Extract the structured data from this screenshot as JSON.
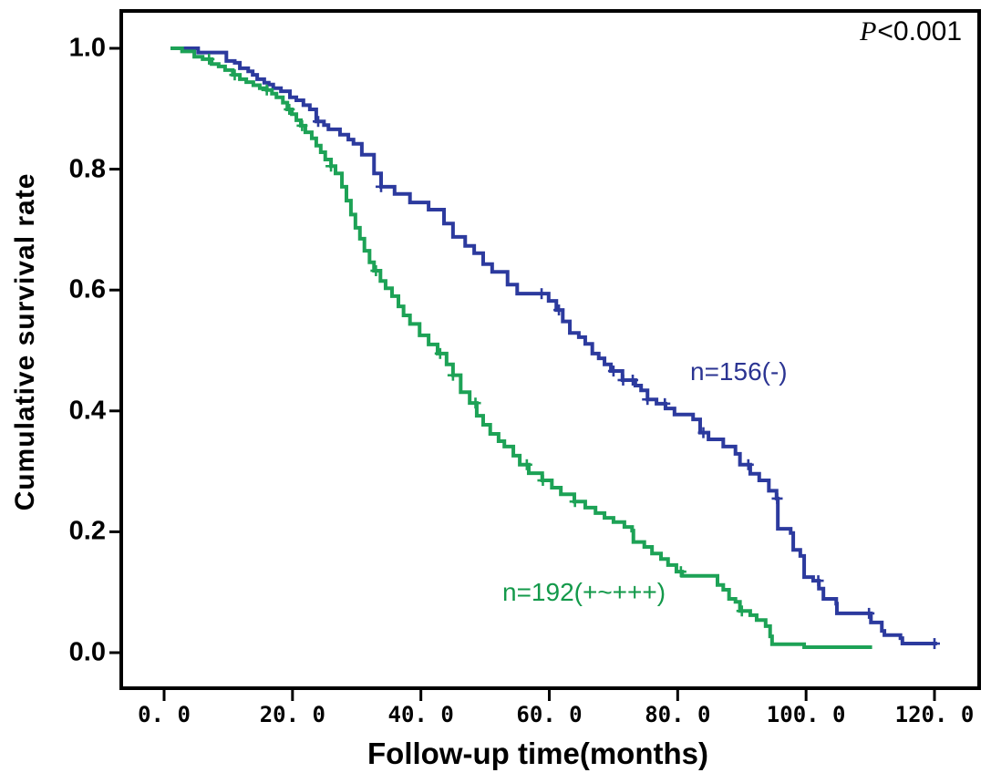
{
  "figure": {
    "p_value_italic": "P",
    "p_value_rest": "<0.001"
  },
  "chart_data": {
    "type": "line",
    "subtype": "kaplan-meier-step",
    "title": "",
    "xlabel": "Follow-up time(months)",
    "ylabel": "Cumulative survival rate",
    "xlim": [
      0,
      120
    ],
    "ylim": [
      0.0,
      1.0
    ],
    "grid": false,
    "legend_position": "inline-annotations",
    "annotation": "P<0.001",
    "x_ticks": [
      0,
      20,
      40,
      60,
      80,
      100,
      120
    ],
    "x_tick_labels": [
      "0. 0",
      "20. 0",
      "40. 0",
      "60. 0",
      "80. 0",
      "100. 0",
      "120. 0"
    ],
    "y_ticks": [
      0.0,
      0.2,
      0.4,
      0.6,
      0.8,
      1.0
    ],
    "y_tick_labels": [
      "0.0",
      "0.2",
      "0.4",
      "0.6",
      "0.8",
      "1.0"
    ],
    "series": [
      {
        "name": "n=156(-)",
        "group": "negative",
        "n": 156,
        "color": "#2c3a9e",
        "label_color": "#2b3492",
        "points": [
          [
            1,
            1.0
          ],
          [
            5.3,
            0.993
          ],
          [
            9.7,
            0.979
          ],
          [
            11,
            0.976
          ],
          [
            11.8,
            0.967
          ],
          [
            13.1,
            0.962
          ],
          [
            13.8,
            0.956
          ],
          [
            14.5,
            0.949
          ],
          [
            15.6,
            0.943
          ],
          [
            16.3,
            0.94
          ],
          [
            17,
            0.934
          ],
          [
            18.2,
            0.929
          ],
          [
            19.6,
            0.919
          ],
          [
            20.6,
            0.914
          ],
          [
            21.7,
            0.906
          ],
          [
            22.7,
            0.899
          ],
          [
            23.7,
            0.879
          ],
          [
            24.9,
            0.873
          ],
          [
            25.6,
            0.866
          ],
          [
            27.4,
            0.857
          ],
          [
            28.7,
            0.849
          ],
          [
            29.5,
            0.842
          ],
          [
            30.8,
            0.824
          ],
          [
            32.7,
            0.793
          ],
          [
            33.8,
            0.771
          ],
          [
            35.9,
            0.759
          ],
          [
            38.3,
            0.745
          ],
          [
            41.2,
            0.733
          ],
          [
            43.6,
            0.71
          ],
          [
            45,
            0.688
          ],
          [
            46.9,
            0.673
          ],
          [
            48.3,
            0.661
          ],
          [
            49.7,
            0.643
          ],
          [
            51.1,
            0.63
          ],
          [
            53.5,
            0.609
          ],
          [
            55,
            0.594
          ],
          [
            59.9,
            0.582
          ],
          [
            61.1,
            0.567
          ],
          [
            62.1,
            0.548
          ],
          [
            63.2,
            0.529
          ],
          [
            64.6,
            0.522
          ],
          [
            65.6,
            0.511
          ],
          [
            66.7,
            0.495
          ],
          [
            67.7,
            0.487
          ],
          [
            68.6,
            0.477
          ],
          [
            69.6,
            0.466
          ],
          [
            71.4,
            0.451
          ],
          [
            73.4,
            0.442
          ],
          [
            74.3,
            0.434
          ],
          [
            75.3,
            0.419
          ],
          [
            76.7,
            0.412
          ],
          [
            78.1,
            0.404
          ],
          [
            79.5,
            0.394
          ],
          [
            82.4,
            0.386
          ],
          [
            83.5,
            0.364
          ],
          [
            84.8,
            0.353
          ],
          [
            87.1,
            0.341
          ],
          [
            89,
            0.329
          ],
          [
            89.7,
            0.311
          ],
          [
            91.3,
            0.296
          ],
          [
            92.7,
            0.285
          ],
          [
            94.2,
            0.268
          ],
          [
            95.4,
            0.255
          ],
          [
            95.6,
            0.205
          ],
          [
            97.6,
            0.198
          ],
          [
            98,
            0.17
          ],
          [
            99.1,
            0.16
          ],
          [
            99.7,
            0.125
          ],
          [
            101.1,
            0.119
          ],
          [
            102,
            0.106
          ],
          [
            102.7,
            0.089
          ],
          [
            104.7,
            0.081
          ],
          [
            104.8,
            0.065
          ],
          [
            110.1,
            0.05
          ],
          [
            111.8,
            0.036
          ],
          [
            112.2,
            0.029
          ],
          [
            114.7,
            0.024
          ],
          [
            115,
            0.015
          ],
          [
            120.4,
            0.015
          ]
        ],
        "censor_months": [
          24,
          33.8,
          58.8,
          61.5,
          70,
          71.5,
          73,
          75.3,
          78,
          84,
          91,
          95.5,
          101.9,
          109.8,
          120
        ]
      },
      {
        "name": "n=192(+~+++)",
        "group": "positive",
        "n": 192,
        "color": "#1da256",
        "label_color": "#13994a",
        "points": [
          [
            1,
            1.0
          ],
          [
            2.8,
            0.995
          ],
          [
            4.7,
            0.986
          ],
          [
            6,
            0.982
          ],
          [
            7.4,
            0.974
          ],
          [
            8.5,
            0.97
          ],
          [
            9.5,
            0.964
          ],
          [
            10.7,
            0.956
          ],
          [
            11.8,
            0.949
          ],
          [
            12.8,
            0.944
          ],
          [
            13.9,
            0.939
          ],
          [
            14.9,
            0.934
          ],
          [
            16,
            0.931
          ],
          [
            16.8,
            0.925
          ],
          [
            17.5,
            0.919
          ],
          [
            18.5,
            0.91
          ],
          [
            19.2,
            0.899
          ],
          [
            19.9,
            0.891
          ],
          [
            20.6,
            0.881
          ],
          [
            21.3,
            0.872
          ],
          [
            22,
            0.861
          ],
          [
            23,
            0.851
          ],
          [
            23.7,
            0.839
          ],
          [
            24.4,
            0.828
          ],
          [
            25.1,
            0.816
          ],
          [
            26,
            0.805
          ],
          [
            26.7,
            0.793
          ],
          [
            27.7,
            0.771
          ],
          [
            28.4,
            0.748
          ],
          [
            29.1,
            0.725
          ],
          [
            29.8,
            0.703
          ],
          [
            30.5,
            0.685
          ],
          [
            31.2,
            0.665
          ],
          [
            32,
            0.646
          ],
          [
            32.7,
            0.632
          ],
          [
            33.7,
            0.615
          ],
          [
            34.5,
            0.603
          ],
          [
            35.5,
            0.59
          ],
          [
            36.5,
            0.573
          ],
          [
            37.3,
            0.558
          ],
          [
            38.3,
            0.544
          ],
          [
            39.8,
            0.525
          ],
          [
            41.2,
            0.51
          ],
          [
            42.6,
            0.495
          ],
          [
            44,
            0.477
          ],
          [
            45,
            0.459
          ],
          [
            46.2,
            0.431
          ],
          [
            47.6,
            0.413
          ],
          [
            48.7,
            0.392
          ],
          [
            49.7,
            0.377
          ],
          [
            50.8,
            0.362
          ],
          [
            52.1,
            0.35
          ],
          [
            53,
            0.341
          ],
          [
            54.4,
            0.326
          ],
          [
            55.4,
            0.311
          ],
          [
            56.8,
            0.297
          ],
          [
            58.9,
            0.285
          ],
          [
            60.4,
            0.273
          ],
          [
            61.8,
            0.262
          ],
          [
            63.9,
            0.25
          ],
          [
            65.6,
            0.24
          ],
          [
            67.2,
            0.231
          ],
          [
            68.6,
            0.223
          ],
          [
            70,
            0.216
          ],
          [
            71.7,
            0.208
          ],
          [
            72.9,
            0.202
          ],
          [
            73.1,
            0.183
          ],
          [
            74.8,
            0.175
          ],
          [
            76,
            0.164
          ],
          [
            77.4,
            0.155
          ],
          [
            78.5,
            0.145
          ],
          [
            79.8,
            0.134
          ],
          [
            80.7,
            0.127
          ],
          [
            86.2,
            0.112
          ],
          [
            87.1,
            0.104
          ],
          [
            88,
            0.089
          ],
          [
            89,
            0.084
          ],
          [
            89.7,
            0.069
          ],
          [
            91.3,
            0.062
          ],
          [
            92.3,
            0.054
          ],
          [
            93.7,
            0.044
          ],
          [
            94.4,
            0.027
          ],
          [
            94.7,
            0.014
          ],
          [
            99.7,
            0.009
          ],
          [
            110,
            0.006
          ]
        ],
        "censor_months": [
          7,
          11,
          16,
          19.5,
          21.5,
          26,
          33,
          43,
          45,
          48.5,
          56.5,
          59,
          64,
          80.5,
          90
        ]
      }
    ]
  }
}
